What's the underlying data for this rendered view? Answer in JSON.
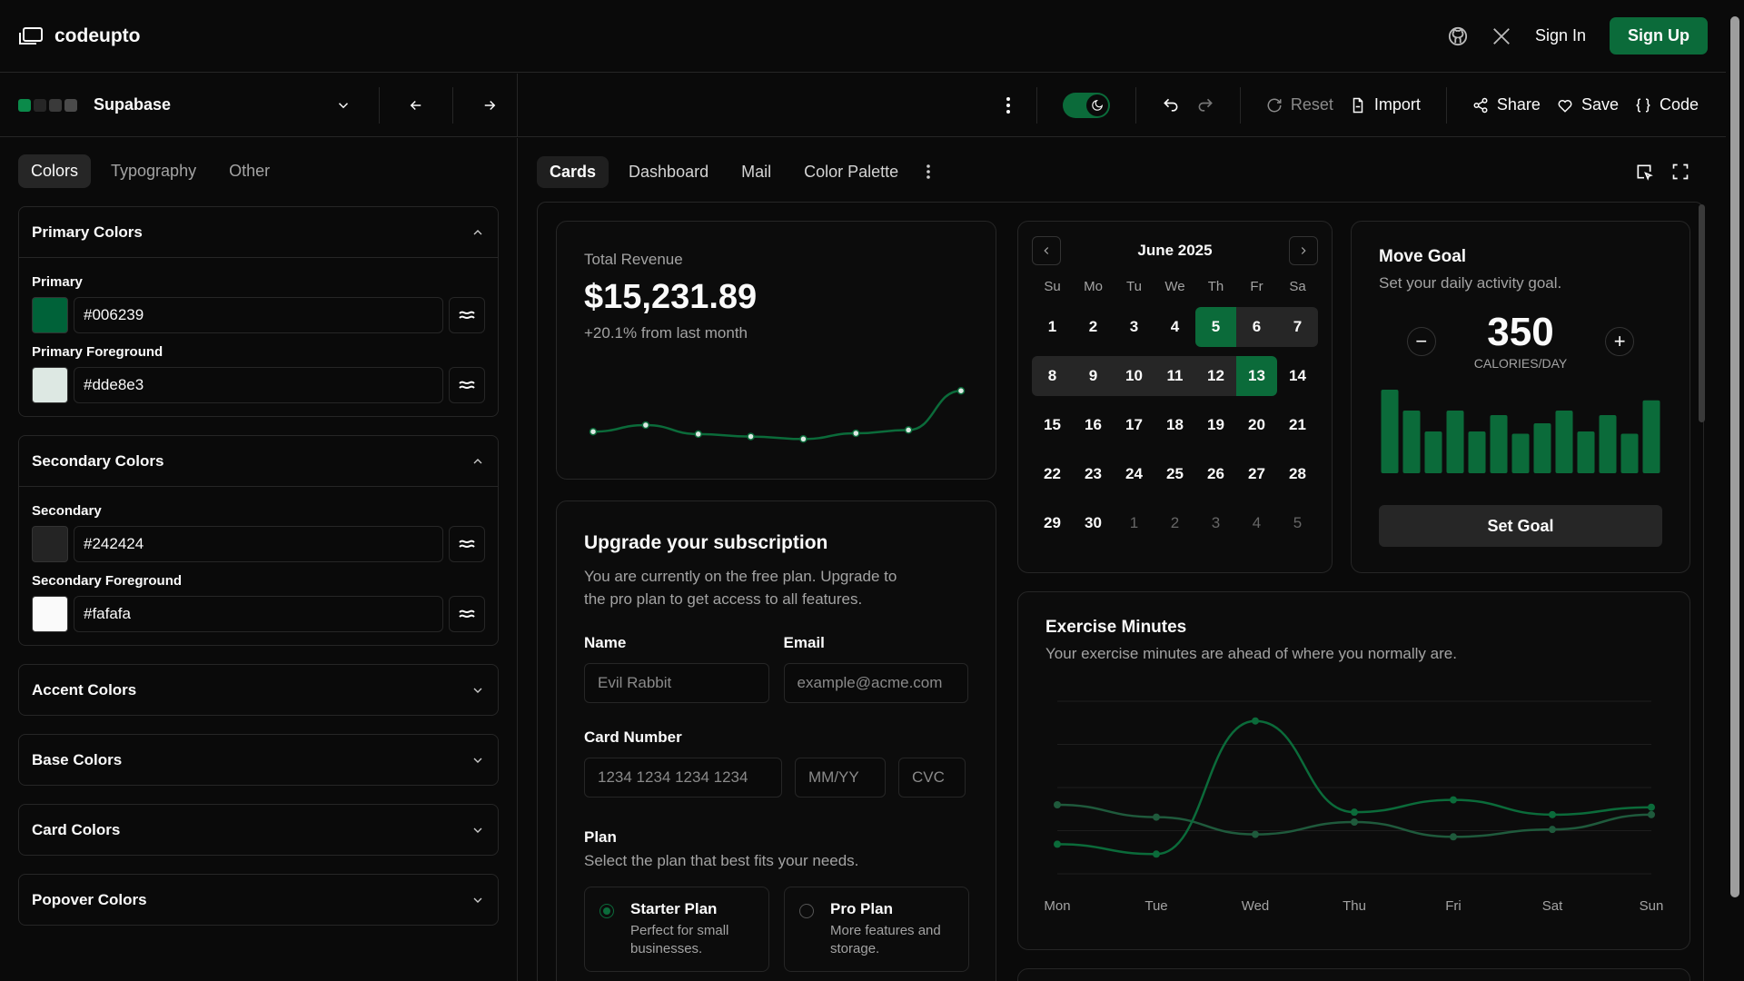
{
  "app": {
    "name": "codeupto",
    "sign_in": "Sign In",
    "sign_up": "Sign Up"
  },
  "toolbar": {
    "theme_name": "Supabase",
    "theme_dots": [
      "#0b8a4a",
      "#262626",
      "#3a3a3a",
      "#4a4a4a"
    ],
    "reset": "Reset",
    "import": "Import",
    "share": "Share",
    "save": "Save",
    "code": "Code"
  },
  "sidebar": {
    "tabs": [
      "Colors",
      "Typography",
      "Other"
    ],
    "primary_section": "Primary Colors",
    "primary_label": "Primary",
    "primary_value": "#006239",
    "primary_color": "#006239",
    "primary_fg_label": "Primary Foreground",
    "primary_fg_value": "#dde8e3",
    "primary_fg_color": "#dde8e3",
    "secondary_section": "Secondary Colors",
    "secondary_label": "Secondary",
    "secondary_value": "#242424",
    "secondary_color": "#242424",
    "secondary_fg_label": "Secondary Foreground",
    "secondary_fg_value": "#fafafa",
    "secondary_fg_color": "#fafafa",
    "collapsed": [
      "Accent Colors",
      "Base Colors",
      "Card Colors",
      "Popover Colors"
    ]
  },
  "preview_tabs": [
    "Cards",
    "Dashboard",
    "Mail",
    "Color Palette"
  ],
  "revenue": {
    "label": "Total Revenue",
    "value": "$15,231.89",
    "change": "+20.1% from last month",
    "points": [
      32,
      40,
      29,
      26,
      23,
      30,
      34,
      82
    ]
  },
  "calendar": {
    "month": "June 2025",
    "weekdays": [
      "Su",
      "Mo",
      "Tu",
      "We",
      "Th",
      "Fr",
      "Sa"
    ],
    "days": [
      "1",
      "2",
      "3",
      "4",
      "5",
      "6",
      "7",
      "8",
      "9",
      "10",
      "11",
      "12",
      "13",
      "14",
      "15",
      "16",
      "17",
      "18",
      "19",
      "20",
      "21",
      "22",
      "23",
      "24",
      "25",
      "26",
      "27",
      "28",
      "29",
      "30",
      "1",
      "2",
      "3",
      "4",
      "5"
    ]
  },
  "move_goal": {
    "title": "Move Goal",
    "subtitle": "Set your daily activity goal.",
    "value": "350",
    "unit": "CALORIES/DAY",
    "button": "Set Goal",
    "bars": [
      400,
      300,
      200,
      300,
      200,
      278,
      189,
      239,
      300,
      200,
      278,
      189,
      349
    ]
  },
  "subscription": {
    "title": "Upgrade your subscription",
    "description": "You are currently on the free plan. Upgrade to the pro plan to get access to all features.",
    "name_label": "Name",
    "name_placeholder": "Evil Rabbit",
    "email_label": "Email",
    "email_placeholder": "example@acme.com",
    "card_label": "Card Number",
    "card_placeholder": "1234 1234 1234 1234",
    "expiry_placeholder": "MM/YY",
    "cvc_placeholder": "CVC",
    "plan_label": "Plan",
    "plan_desc": "Select the plan that best fits your needs.",
    "starter_title": "Starter Plan",
    "starter_desc": "Perfect for small businesses.",
    "pro_title": "Pro Plan",
    "pro_desc": "More features and storage."
  },
  "exercise": {
    "title": "Exercise Minutes",
    "subtitle": "Your exercise minutes are ahead of where you normally are.",
    "chart_data": {
      "type": "line",
      "categories": [
        "Mon",
        "Tue",
        "Wed",
        "Thu",
        "Fri",
        "Sat",
        "Sun"
      ],
      "series": [
        {
          "values": [
            42,
            38,
            92,
            55,
            60,
            54,
            57
          ],
          "color": "#0b6b3a"
        },
        {
          "values": [
            58,
            53,
            46,
            51,
            45,
            48,
            54
          ],
          "color": "#1f5a3c"
        }
      ],
      "ylim": [
        30,
        100
      ]
    }
  }
}
